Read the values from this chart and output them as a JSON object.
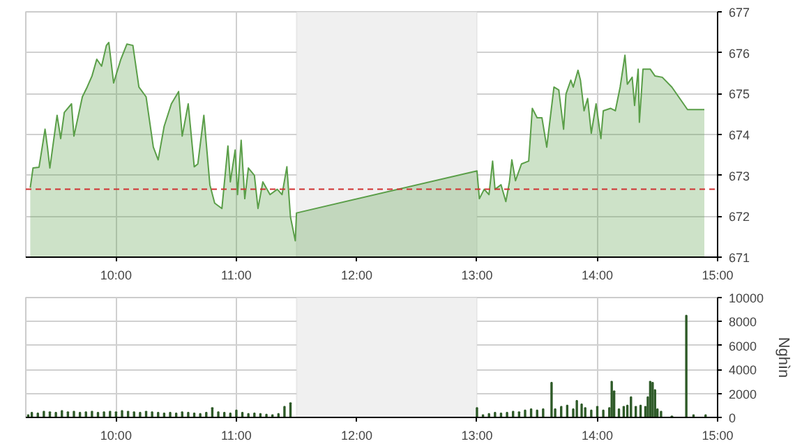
{
  "chart_data": [
    {
      "type": "area",
      "xlim": [
        9.25,
        15
      ],
      "ylim": [
        671,
        677
      ],
      "xticks": [
        {
          "value": 10,
          "label": "10:00"
        },
        {
          "value": 11,
          "label": "11:00"
        },
        {
          "value": 12,
          "label": "12:00"
        },
        {
          "value": 13,
          "label": "13:00"
        },
        {
          "value": 14,
          "label": "14:00"
        },
        {
          "value": 15,
          "label": "15:00"
        }
      ],
      "yticks": [
        671,
        672,
        673,
        674,
        675,
        676,
        677
      ],
      "grid": true,
      "ref_lines": [
        {
          "axis": "y",
          "value": 672.66,
          "color": "#d03030",
          "line_style": "dashed"
        }
      ],
      "bands": [
        {
          "axis": "x",
          "from": 11.5,
          "to": 13.0,
          "color": "#f0f0f0"
        }
      ],
      "series": [
        {
          "color": "#5a9e48",
          "x": [
            9.287,
            9.31,
            9.36,
            9.41,
            9.43,
            9.45,
            9.51,
            9.54,
            9.57,
            9.63,
            9.65,
            9.72,
            9.76,
            9.8,
            9.84,
            9.88,
            9.92,
            9.94,
            9.98,
            10.04,
            10.09,
            10.14,
            10.19,
            10.25,
            10.31,
            10.35,
            10.4,
            10.46,
            10.52,
            10.55,
            10.6,
            10.65,
            10.68,
            10.73,
            10.78,
            10.82,
            10.88,
            10.93,
            10.95,
            10.99,
            11.01,
            11.04,
            11.07,
            11.1,
            11.15,
            11.18,
            11.22,
            11.28,
            11.34,
            11.38,
            11.42,
            11.45,
            11.49,
            11.5,
            13.0,
            13.02,
            13.06,
            13.1,
            13.13,
            13.15,
            13.2,
            13.24,
            13.27,
            13.29,
            13.32,
            13.37,
            13.43,
            13.46,
            13.5,
            13.54,
            13.58,
            13.64,
            13.68,
            13.72,
            13.74,
            13.78,
            13.8,
            13.84,
            13.86,
            13.89,
            13.92,
            13.95,
            13.99,
            14.03,
            14.05,
            14.11,
            14.15,
            14.19,
            14.23,
            14.25,
            14.29,
            14.31,
            14.34,
            14.35,
            14.38,
            14.44,
            14.48,
            14.54,
            14.62,
            14.75,
            14.89
          ],
          "values": [
            672.7,
            673.18,
            673.2,
            674.13,
            673.69,
            673.18,
            674.47,
            673.9,
            674.54,
            674.75,
            673.96,
            674.92,
            675.16,
            675.43,
            675.84,
            675.67,
            676.18,
            676.25,
            675.26,
            675.84,
            676.21,
            676.18,
            675.16,
            674.92,
            673.69,
            673.38,
            674.2,
            674.75,
            675.05,
            673.96,
            674.75,
            673.21,
            673.28,
            674.47,
            672.77,
            672.32,
            672.19,
            673.72,
            672.84,
            673.62,
            672.53,
            673.86,
            672.43,
            673.18,
            673.0,
            672.19,
            672.84,
            672.53,
            672.66,
            672.53,
            673.21,
            671.98,
            671.4,
            672.08,
            673.11,
            672.43,
            672.66,
            672.53,
            673.35,
            672.66,
            672.77,
            672.36,
            672.84,
            673.38,
            672.87,
            673.28,
            673.35,
            674.64,
            674.41,
            674.41,
            673.69,
            675.16,
            675.09,
            674.13,
            674.99,
            675.33,
            675.16,
            675.57,
            675.33,
            674.58,
            674.88,
            674.03,
            674.75,
            673.9,
            674.58,
            674.64,
            674.58,
            675.16,
            675.94,
            675.23,
            675.4,
            674.71,
            675.6,
            674.3,
            675.6,
            675.6,
            675.43,
            675.4,
            675.16,
            674.61,
            674.61
          ]
        }
      ]
    },
    {
      "type": "bar",
      "xlim": [
        9.25,
        15
      ],
      "ylim": [
        0,
        10000
      ],
      "ylabel": "Nghìn",
      "xticks": [
        {
          "value": 10,
          "label": "10:00"
        },
        {
          "value": 11,
          "label": "11:00"
        },
        {
          "value": 12,
          "label": "12:00"
        },
        {
          "value": 13,
          "label": "13:00"
        },
        {
          "value": 14,
          "label": "14:00"
        },
        {
          "value": 15,
          "label": "15:00"
        }
      ],
      "yticks": [
        0,
        2000,
        4000,
        6000,
        8000,
        10000
      ],
      "grid": true,
      "bands": [
        {
          "axis": "x",
          "from": 11.5,
          "to": 13.0,
          "color": "#f0f0f0"
        }
      ],
      "series": [
        {
          "color": "#2e5a28",
          "x": [
            9.27,
            9.3,
            9.35,
            9.4,
            9.45,
            9.5,
            9.55,
            9.6,
            9.65,
            9.7,
            9.75,
            9.8,
            9.85,
            9.9,
            9.95,
            10.0,
            10.05,
            10.1,
            10.15,
            10.2,
            10.25,
            10.3,
            10.35,
            10.4,
            10.45,
            10.5,
            10.55,
            10.6,
            10.65,
            10.7,
            10.75,
            10.8,
            10.85,
            10.9,
            10.95,
            11.0,
            11.05,
            11.1,
            11.15,
            11.2,
            11.25,
            11.3,
            11.35,
            11.4,
            11.45,
            13.0,
            13.05,
            13.1,
            13.15,
            13.2,
            13.25,
            13.3,
            13.35,
            13.4,
            13.45,
            13.5,
            13.55,
            13.62,
            13.65,
            13.7,
            13.75,
            13.8,
            13.83,
            13.87,
            13.9,
            13.95,
            14.0,
            14.05,
            14.1,
            14.12,
            14.14,
            14.18,
            14.22,
            14.25,
            14.28,
            14.32,
            14.36,
            14.4,
            14.42,
            14.44,
            14.46,
            14.48,
            14.5,
            14.53,
            14.62,
            14.74,
            14.8,
            14.9
          ],
          "values": [
            200,
            400,
            350,
            500,
            450,
            400,
            550,
            450,
            500,
            400,
            450,
            500,
            400,
            450,
            500,
            450,
            550,
            500,
            450,
            400,
            500,
            450,
            400,
            350,
            400,
            350,
            450,
            400,
            350,
            300,
            400,
            800,
            450,
            400,
            350,
            600,
            400,
            300,
            350,
            300,
            250,
            200,
            300,
            900,
            1200,
            800,
            200,
            300,
            400,
            350,
            400,
            500,
            450,
            600,
            700,
            600,
            700,
            2900,
            700,
            900,
            1000,
            700,
            1400,
            1100,
            800,
            600,
            900,
            600,
            800,
            3000,
            2200,
            700,
            900,
            1000,
            1700,
            900,
            1000,
            900,
            1700,
            3000,
            2900,
            2300,
            700,
            500,
            100,
            8500,
            200,
            200
          ]
        }
      ]
    }
  ]
}
